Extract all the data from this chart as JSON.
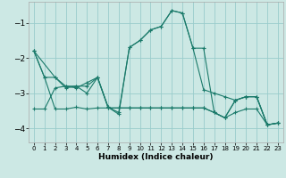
{
  "xlabel": "Humidex (Indice chaleur)",
  "background_color": "#cce8e4",
  "grid_color": "#99cccc",
  "line_color": "#1a7a6a",
  "xlim": [
    -0.5,
    23.5
  ],
  "ylim": [
    -4.4,
    -0.4
  ],
  "yticks": [
    -4,
    -3,
    -2,
    -1
  ],
  "xticks": [
    0,
    1,
    2,
    3,
    4,
    5,
    6,
    7,
    8,
    9,
    10,
    11,
    12,
    13,
    14,
    15,
    16,
    17,
    18,
    19,
    20,
    21,
    22,
    23
  ],
  "line1_x": [
    0,
    1,
    2,
    3,
    4,
    5,
    6,
    7,
    8,
    9,
    10,
    11,
    12,
    13,
    14,
    15,
    16,
    17,
    18,
    19,
    20,
    21,
    22,
    23
  ],
  "line1_y": [
    -1.8,
    -2.55,
    -2.55,
    -2.8,
    -2.85,
    -2.7,
    -2.55,
    -3.4,
    -3.55,
    -1.7,
    -1.5,
    -1.2,
    -1.1,
    -0.65,
    -0.72,
    -1.72,
    -1.72,
    -3.55,
    -3.7,
    -3.2,
    -3.1,
    -3.1,
    -3.9,
    -3.85
  ],
  "line2_x": [
    0,
    1,
    2,
    3,
    4,
    5,
    6,
    7,
    8,
    9,
    10,
    11,
    12,
    13,
    14,
    15,
    16,
    17,
    18,
    19,
    20,
    21,
    22,
    23
  ],
  "line2_y": [
    -1.8,
    -2.55,
    -3.45,
    -3.45,
    -3.4,
    -3.45,
    -3.42,
    -3.42,
    -3.42,
    -3.42,
    -3.42,
    -3.42,
    -3.42,
    -3.42,
    -3.42,
    -3.42,
    -3.42,
    -3.55,
    -3.7,
    -3.55,
    -3.45,
    -3.45,
    -3.9,
    -3.85
  ],
  "line3_x": [
    0,
    1,
    2,
    3,
    4,
    5,
    6,
    7,
    8,
    9,
    10,
    11,
    12,
    13,
    14,
    15,
    16,
    17,
    18,
    19,
    20,
    21,
    22,
    23
  ],
  "line3_y": [
    -3.45,
    -3.45,
    -2.85,
    -2.8,
    -2.8,
    -3.0,
    -2.55,
    -3.42,
    -3.42,
    -3.42,
    -3.42,
    -3.42,
    -3.42,
    -3.42,
    -3.42,
    -3.42,
    -3.42,
    -3.55,
    -3.7,
    -3.2,
    -3.1,
    -3.1,
    -3.9,
    -3.85
  ],
  "line4_x": [
    0,
    2,
    3,
    4,
    5,
    6,
    7,
    8,
    9,
    10,
    11,
    12,
    13,
    14,
    15,
    16,
    17,
    18,
    19,
    20,
    21,
    22,
    23
  ],
  "line4_y": [
    -1.8,
    -2.55,
    -2.85,
    -2.8,
    -2.8,
    -2.55,
    -3.4,
    -3.6,
    -1.7,
    -1.5,
    -1.2,
    -1.1,
    -0.65,
    -0.72,
    -1.72,
    -2.9,
    -3.0,
    -3.1,
    -3.2,
    -3.1,
    -3.1,
    -3.9,
    -3.85
  ],
  "xlabel_fontsize": 6.5,
  "ytick_fontsize": 6.5,
  "xtick_fontsize": 5.0
}
